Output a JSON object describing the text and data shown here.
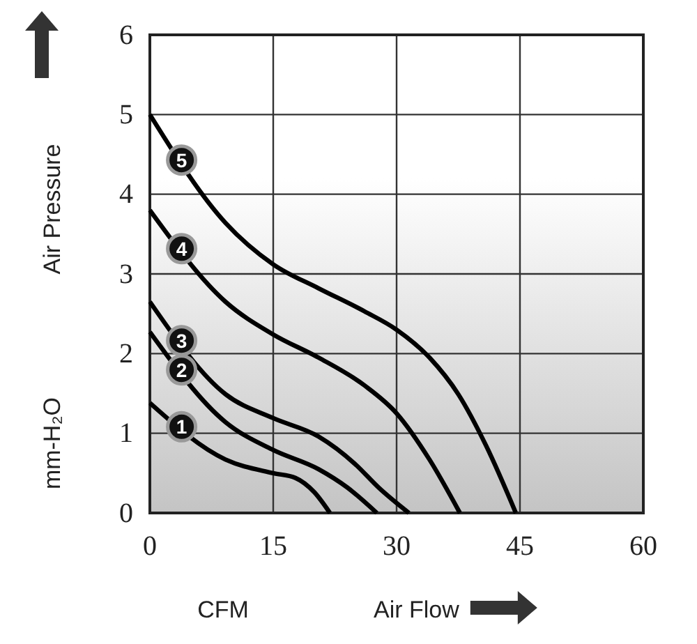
{
  "chart_data": {
    "type": "line",
    "xlabel": "Air Flow",
    "ylabel": "Air Pressure",
    "annotations": [
      "CFM",
      "mm-H₂O"
    ],
    "xlim": [
      0,
      60
    ],
    "ylim": [
      0,
      6
    ],
    "xticks": [
      0,
      15,
      30,
      45,
      60
    ],
    "yticks": [
      0,
      1,
      2,
      3,
      4,
      5,
      6
    ],
    "grid": true,
    "marker": "none",
    "line_style": "solid",
    "series": [
      {
        "name": "5",
        "color": "#000000",
        "x": [
          0,
          9.2,
          15,
          20.5,
          26.1,
          30,
          34,
          37.5,
          40.9,
          44.5
        ],
        "values": [
          5,
          3.64,
          3.12,
          2.82,
          2.53,
          2.3,
          1.95,
          1.49,
          0.84,
          0
        ]
      },
      {
        "name": "4",
        "color": "#000000",
        "x": [
          0,
          9.2,
          15,
          20.5,
          26.1,
          30,
          34,
          37.7
        ],
        "values": [
          3.8,
          2.65,
          2.24,
          1.95,
          1.6,
          1.25,
          0.67,
          0
        ]
      },
      {
        "name": "3",
        "color": "#000000",
        "x": [
          0,
          9.2,
          15,
          20.5,
          25,
          27.8,
          31.5
        ],
        "values": [
          2.65,
          1.49,
          1.19,
          0.96,
          0.61,
          0.32,
          0
        ]
      },
      {
        "name": "2",
        "color": "#000000",
        "x": [
          0,
          9.2,
          15,
          20.5,
          24,
          27.6
        ],
        "values": [
          2.27,
          1.14,
          0.79,
          0.55,
          0.32,
          0
        ]
      },
      {
        "name": "1",
        "color": "#000000",
        "x": [
          0,
          9.2,
          15,
          17.7,
          20,
          21.9
        ],
        "values": [
          1.38,
          0.67,
          0.5,
          0.44,
          0.26,
          0
        ]
      }
    ]
  }
}
